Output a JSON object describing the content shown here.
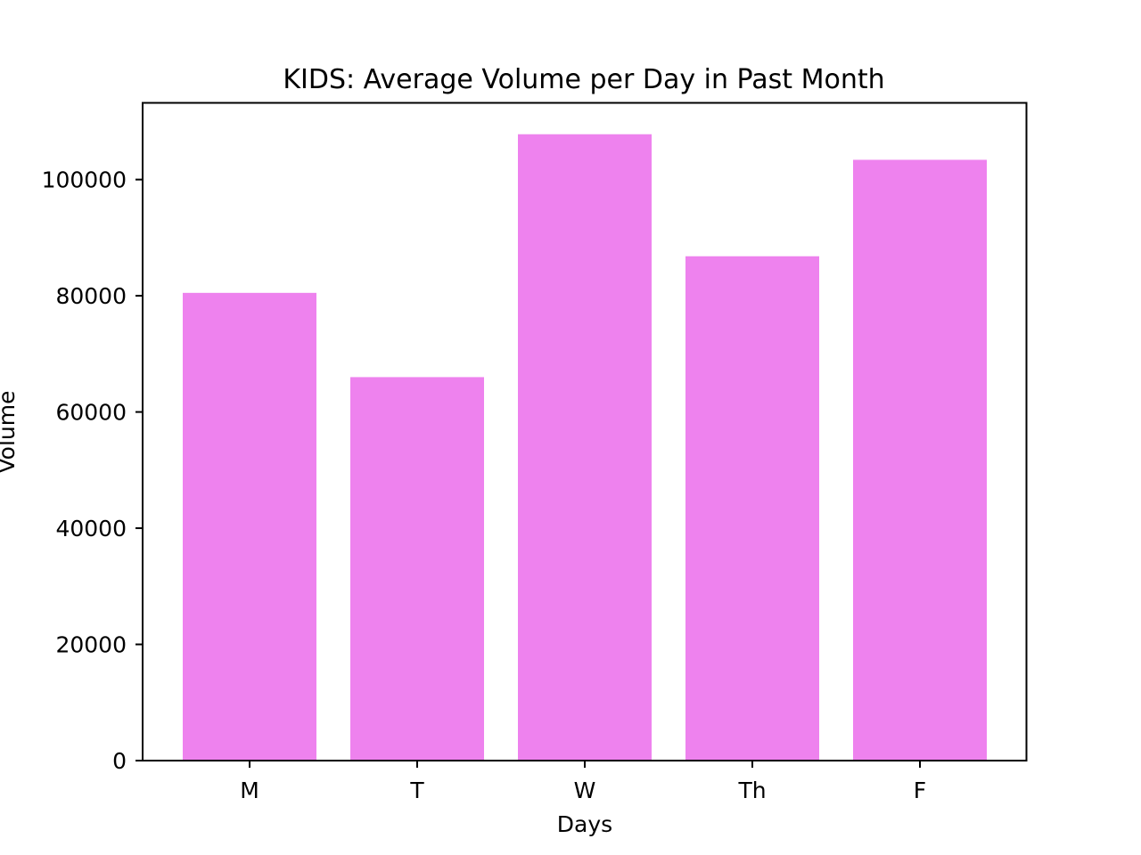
{
  "chart_data": {
    "type": "bar",
    "title": "KIDS: Average Volume per Day in Past Month",
    "xlabel": "Days",
    "ylabel": "Volume",
    "categories": [
      "M",
      "T",
      "W",
      "Th",
      "F"
    ],
    "values": [
      80500,
      66000,
      107800,
      86800,
      103400
    ],
    "ylim": [
      0,
      113200
    ],
    "yticks": [
      0,
      20000,
      40000,
      60000,
      80000,
      100000
    ],
    "ytick_labels": [
      "0",
      "20000",
      "40000",
      "60000",
      "80000",
      "100000"
    ],
    "bar_color": "#ee82ee",
    "grid": false,
    "legend": "none"
  }
}
